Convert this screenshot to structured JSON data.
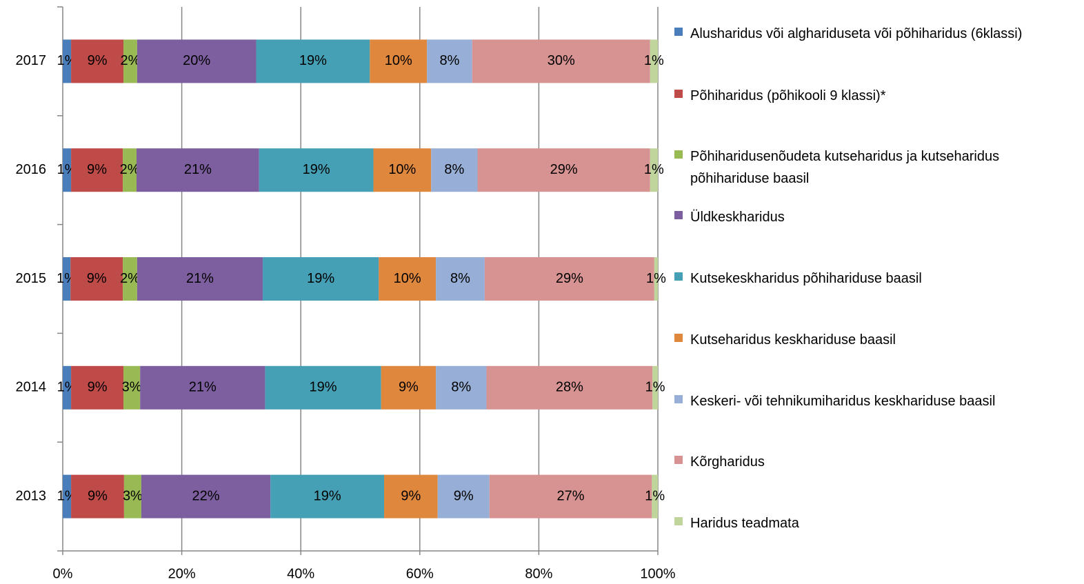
{
  "chart_data": {
    "type": "bar",
    "orientation": "horizontal",
    "stacked": "percent",
    "categories": [
      "2013",
      "2014",
      "2015",
      "2016",
      "2017"
    ],
    "series": [
      {
        "name": "Alusharidus või alghariduseta või põhiharidus (6klassi)",
        "color": "#4a7ebb",
        "values": [
          1.4,
          1.4,
          1.3,
          1.4,
          1.4
        ],
        "value_labels": [
          "1%",
          "1%",
          "1%",
          "1%",
          "1%"
        ]
      },
      {
        "name": "Põhiharidus (põhikooli 9 klassi)*",
        "color": "#be4b48",
        "values": [
          8.9,
          8.8,
          8.8,
          8.7,
          8.8
        ],
        "value_labels": [
          "9%",
          "9%",
          "9%",
          "9%",
          "9%"
        ]
      },
      {
        "name": "Põhiharidusenõudeta kutseharidus ja kutseharidus põhihariduse baasil",
        "color": "#98b954",
        "values": [
          2.9,
          2.8,
          2.4,
          2.3,
          2.3
        ],
        "value_labels": [
          "3%",
          "3%",
          "2%",
          "2%",
          "2%"
        ]
      },
      {
        "name": "Üldkeskharidus",
        "color": "#7d5fa0",
        "values": [
          21.7,
          21.0,
          21.1,
          20.6,
          20.0
        ],
        "value_labels": [
          "22%",
          "21%",
          "21%",
          "21%",
          "20%"
        ]
      },
      {
        "name": "Kutsekeskharidus põhihariduse baasil",
        "color": "#46a0b5",
        "values": [
          19.1,
          19.5,
          19.5,
          19.2,
          19.1
        ],
        "value_labels": [
          "19%",
          "19%",
          "19%",
          "19%",
          "19%"
        ]
      },
      {
        "name": "Kutseharidus keskhariduse baasil",
        "color": "#e0873e",
        "values": [
          9.0,
          9.2,
          9.6,
          9.7,
          9.6
        ],
        "value_labels": [
          "9%",
          "9%",
          "10%",
          "10%",
          "10%"
        ]
      },
      {
        "name": "Keskeri- või tehnikumiharidus keskhariduse baasil",
        "color": "#97afd6",
        "values": [
          8.7,
          8.5,
          8.2,
          7.8,
          7.6
        ],
        "value_labels": [
          "9%",
          "8%",
          "8%",
          "8%",
          "8%"
        ]
      },
      {
        "name": "Kõrgharidus",
        "color": "#d69391",
        "values": [
          27.3,
          27.9,
          28.5,
          29.0,
          29.9
        ],
        "value_labels": [
          "27%",
          "28%",
          "29%",
          "29%",
          "30%"
        ]
      },
      {
        "name": "Haridus teadmata",
        "color": "#bfd59b",
        "values": [
          1.0,
          0.9,
          0.6,
          1.3,
          1.3
        ],
        "value_labels": [
          "1%",
          "1%",
          "1%",
          "1%",
          "1%"
        ]
      }
    ],
    "xlim": [
      0,
      100
    ],
    "xticks": [
      {
        "value": 0,
        "label": "0%"
      },
      {
        "value": 20,
        "label": "20%"
      },
      {
        "value": 40,
        "label": "40%"
      },
      {
        "value": 60,
        "label": "60%"
      },
      {
        "value": 80,
        "label": "80%"
      },
      {
        "value": 100,
        "label": "100%"
      }
    ],
    "grid": true,
    "legend": "right"
  }
}
